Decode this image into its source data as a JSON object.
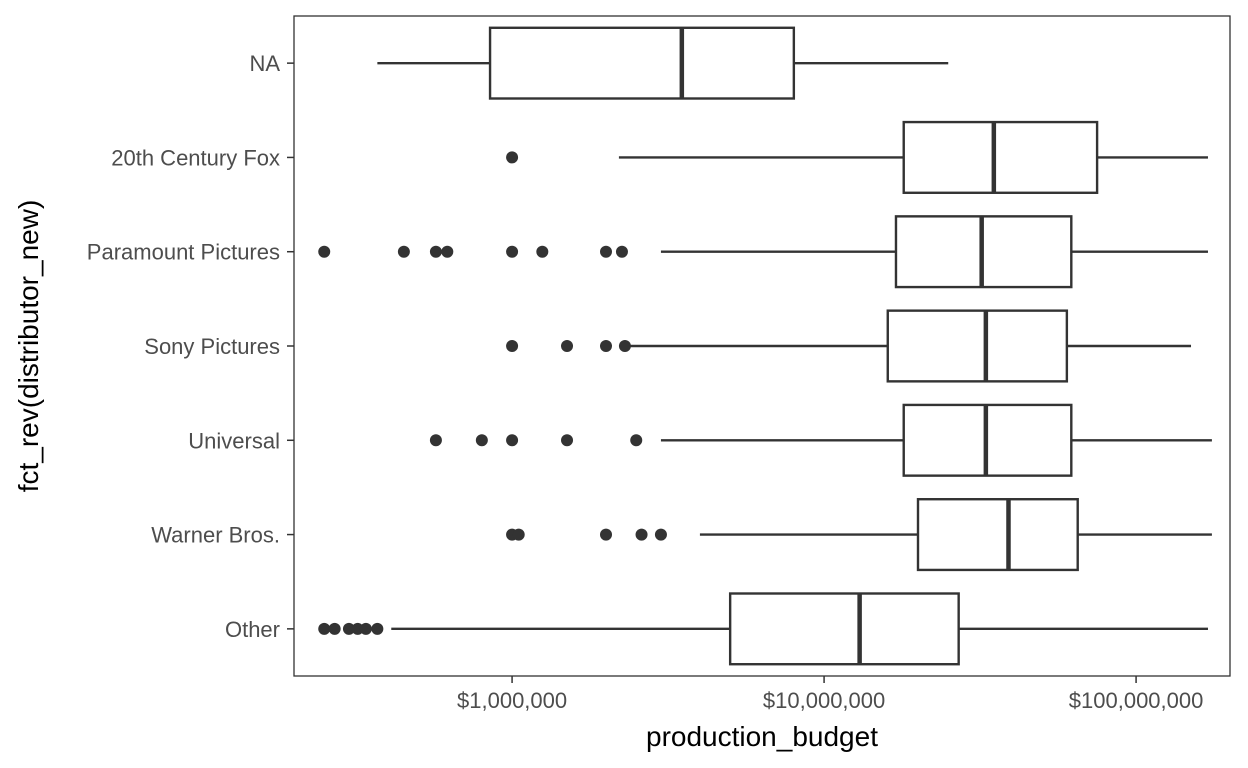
{
  "chart_data": {
    "type": "boxplot",
    "orientation": "horizontal",
    "xlabel": "production_budget",
    "ylabel": "fct_rev(distributor_new)",
    "x_scale": "log10",
    "xlim": [
      200000,
      200000000
    ],
    "x_ticks": [
      {
        "value": 1000000,
        "label": "$1,000,000"
      },
      {
        "value": 10000000,
        "label": "$10,000,000"
      },
      {
        "value": 100000000,
        "label": "$100,000,000"
      }
    ],
    "grid": false,
    "categories": [
      {
        "name": "NA",
        "whisker_low": 370000,
        "q1": 850000,
        "median": 3500000,
        "q3": 8000000,
        "whisker_high": 25000000,
        "outliers": []
      },
      {
        "name": "20th Century Fox",
        "whisker_low": 2200000,
        "q1": 18000000,
        "median": 35000000,
        "q3": 75000000,
        "whisker_high": 170000000,
        "outliers": [
          1000000
        ]
      },
      {
        "name": "Paramount Pictures",
        "whisker_low": 3000000,
        "q1": 17000000,
        "median": 32000000,
        "q3": 62000000,
        "whisker_high": 170000000,
        "outliers": [
          250000,
          450000,
          570000,
          620000,
          1000000,
          1250000,
          2000000,
          2250000
        ]
      },
      {
        "name": "Sony Pictures",
        "whisker_low": 2300000,
        "q1": 16000000,
        "median": 33000000,
        "q3": 60000000,
        "whisker_high": 150000000,
        "outliers": [
          1000000,
          1500000,
          2000000,
          2300000
        ]
      },
      {
        "name": "Universal",
        "whisker_low": 3000000,
        "q1": 18000000,
        "median": 33000000,
        "q3": 62000000,
        "whisker_high": 175000000,
        "outliers": [
          570000,
          800000,
          1000000,
          1500000,
          2500000
        ]
      },
      {
        "name": "Warner Bros.",
        "whisker_low": 4000000,
        "q1": 20000000,
        "median": 39000000,
        "q3": 65000000,
        "whisker_high": 175000000,
        "outliers": [
          1000000,
          1050000,
          2000000,
          2600000,
          3000000
        ]
      },
      {
        "name": "Other",
        "whisker_low": 410000,
        "q1": 5000000,
        "median": 13000000,
        "q3": 27000000,
        "whisker_high": 170000000,
        "outliers": [
          250000,
          270000,
          300000,
          320000,
          340000,
          370000
        ]
      }
    ]
  }
}
